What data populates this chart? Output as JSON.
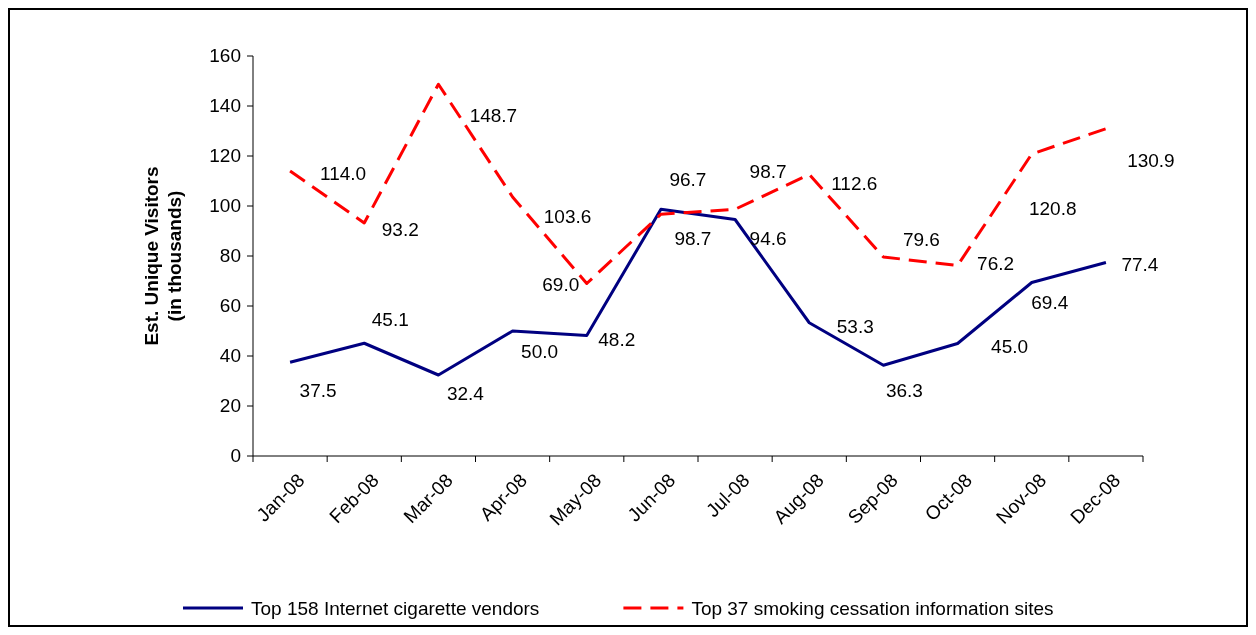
{
  "chart_data": {
    "type": "line",
    "ylabel": "Est. Unique Visitors\n(in thousands)",
    "categories": [
      "Jan-08",
      "Feb-08",
      "Mar-08",
      "Apr-08",
      "May-08",
      "Jun-08",
      "Jul-08",
      "Aug-08",
      "Sep-08",
      "Oct-08",
      "Nov-08",
      "Dec-08"
    ],
    "series": [
      {
        "name": "Top 158 Internet cigarette vendors",
        "color": "#000080",
        "line_style": "solid",
        "values": [
          37.5,
          45.1,
          32.4,
          50.0,
          48.2,
          98.7,
          94.6,
          53.3,
          36.3,
          45.0,
          69.4,
          77.4
        ],
        "value_labels": [
          "37.5",
          "45.1",
          "32.4",
          "50.0",
          "48.2",
          "98.7",
          "94.6",
          "53.3",
          "36.3",
          "45.0",
          "69.4",
          "77.4"
        ]
      },
      {
        "name": "Top 37 smoking cessation information sites",
        "color": "#ff0000",
        "line_style": "dashed",
        "values": [
          114.0,
          93.2,
          148.7,
          103.6,
          69.0,
          96.7,
          98.7,
          112.6,
          79.6,
          76.2,
          120.8,
          130.9
        ],
        "value_labels": [
          "114.0",
          "93.2",
          "148.7",
          "103.6",
          "69.0",
          "96.7",
          "98.7",
          "112.6",
          "79.6",
          "76.2",
          "120.8",
          "130.9"
        ]
      }
    ],
    "ylim": [
      0,
      160
    ],
    "yticks": [
      0,
      20,
      40,
      60,
      80,
      100,
      120,
      140,
      160
    ],
    "grid": false,
    "legend": "bottom",
    "marker": "none"
  }
}
